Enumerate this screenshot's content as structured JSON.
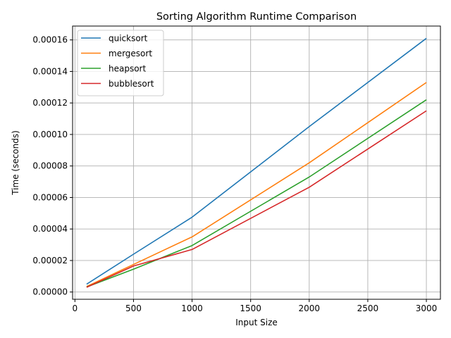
{
  "chart_data": {
    "type": "line",
    "title": "Sorting Algorithm Runtime Comparison",
    "xlabel": "Input Size",
    "ylabel": "Time (seconds)",
    "x": [
      100,
      500,
      1000,
      2000,
      3000
    ],
    "xlim": [
      -20,
      3120
    ],
    "ylim": [
      -4.6e-06,
      0.0001688
    ],
    "xticks": [
      0,
      500,
      1000,
      1500,
      2000,
      2500,
      3000
    ],
    "xtick_labels": [
      "0",
      "500",
      "1000",
      "1500",
      "2000",
      "2500",
      "3000"
    ],
    "yticks": [
      0,
      2e-05,
      4e-05,
      6e-05,
      8e-05,
      0.0001,
      0.00012,
      0.00014,
      0.00016
    ],
    "ytick_labels": [
      "0.00000",
      "0.00002",
      "0.00004",
      "0.00006",
      "0.00008",
      "0.00010",
      "0.00012",
      "0.00014",
      "0.00016"
    ],
    "grid": true,
    "legend_position": "upper-left",
    "series": [
      {
        "name": "quicksort",
        "color": "#1f77b4",
        "values": [
          5e-06,
          2.4e-05,
          4.75e-05,
          0.000105,
          0.000161
        ]
      },
      {
        "name": "mergesort",
        "color": "#ff7f0e",
        "values": [
          3.5e-06,
          1.75e-05,
          3.5e-05,
          8.2e-05,
          0.000133
        ]
      },
      {
        "name": "heapsort",
        "color": "#2ca02c",
        "values": [
          3.2e-06,
          1.45e-05,
          2.95e-05,
          7.3e-05,
          0.000122
        ]
      },
      {
        "name": "bubblesort",
        "color": "#d62728",
        "values": [
          3e-06,
          1.65e-05,
          2.7e-05,
          6.65e-05,
          0.000115
        ]
      }
    ]
  }
}
